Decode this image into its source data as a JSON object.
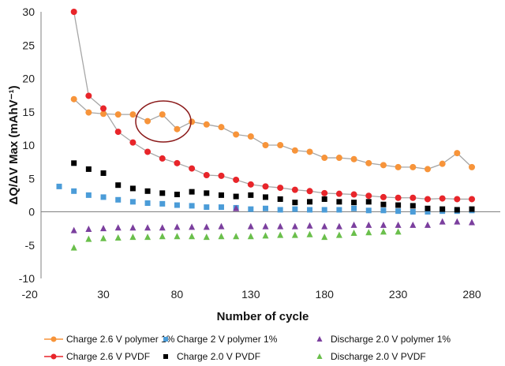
{
  "chart_data": {
    "type": "scatter",
    "xlabel": "Number of cycle",
    "ylabel": "ΔQ/ΔV Max (mAhV⁻¹)",
    "xlim": [
      -20,
      290
    ],
    "ylim": [
      -10,
      30
    ],
    "x_ticks": [
      -20,
      30,
      80,
      130,
      180,
      230,
      280
    ],
    "y_ticks": [
      -10,
      -5,
      0,
      5,
      10,
      15,
      20,
      25,
      30
    ],
    "grid": false,
    "legend_position": "bottom",
    "annotation": "ellipse highlighting cycles 60-80 of Charge 2.6 V polymer 1% series",
    "series": [
      {
        "name": "Charge 2.6 V polymer 1%",
        "marker": "circle",
        "color": "#F7943A",
        "line": true,
        "line_color": "#A6A6A6",
        "x": [
          10,
          20,
          30,
          40,
          50,
          60,
          70,
          80,
          90,
          100,
          110,
          120,
          130,
          140,
          150,
          160,
          170,
          180,
          190,
          200,
          210,
          220,
          230,
          240,
          250,
          260,
          270,
          280
        ],
        "y": [
          16.9,
          14.9,
          14.7,
          14.6,
          14.6,
          13.6,
          14.6,
          12.4,
          13.5,
          13.1,
          12.7,
          11.6,
          11.3,
          10.0,
          10.0,
          9.2,
          9.0,
          8.1,
          8.1,
          7.9,
          7.3,
          7.0,
          6.7,
          6.7,
          6.4,
          7.2,
          8.8,
          6.7
        ]
      },
      {
        "name": "Charge 2.6 V PVDF",
        "marker": "circle",
        "color": "#E8252A",
        "line": true,
        "line_color": "#A6A6A6",
        "x": [
          10,
          20,
          30,
          40,
          50,
          60,
          70,
          80,
          90,
          100,
          110,
          120,
          130,
          140,
          150,
          160,
          170,
          180,
          190,
          200,
          210,
          220,
          230,
          240,
          250,
          260,
          270,
          280
        ],
        "y": [
          30.0,
          17.4,
          15.5,
          12.0,
          10.4,
          9.0,
          8.0,
          7.3,
          6.5,
          5.5,
          5.4,
          4.8,
          4.1,
          3.8,
          3.6,
          3.3,
          3.1,
          2.8,
          2.7,
          2.6,
          2.4,
          2.2,
          2.1,
          2.1,
          1.9,
          2.0,
          1.9,
          1.9
        ]
      },
      {
        "name": "Charge 2 V polymer 1%",
        "marker": "square",
        "color": "#4B9CD8",
        "line": false,
        "x": [
          0,
          10,
          20,
          30,
          40,
          50,
          60,
          70,
          80,
          90,
          100,
          110,
          120,
          130,
          140,
          150,
          160,
          170,
          180,
          190,
          200,
          210,
          220,
          230,
          240,
          250,
          260,
          270,
          280
        ],
        "y": [
          3.8,
          3.1,
          2.5,
          2.2,
          1.8,
          1.5,
          1.3,
          1.2,
          1.0,
          0.9,
          0.7,
          0.7,
          0.6,
          0.4,
          0.5,
          0.3,
          0.4,
          0.3,
          0.3,
          0.3,
          0.5,
          0.2,
          0.2,
          0.1,
          0.0,
          0.0,
          0.1,
          0.1,
          0.2
        ]
      },
      {
        "name": "Charge 2.0 V PVDF",
        "marker": "square",
        "color": "#000000",
        "line": false,
        "x": [
          10,
          20,
          30,
          40,
          50,
          60,
          70,
          80,
          90,
          100,
          110,
          120,
          130,
          140,
          150,
          160,
          170,
          180,
          190,
          200,
          210,
          220,
          230,
          240,
          250,
          260,
          270,
          280
        ],
        "y": [
          7.3,
          6.4,
          5.8,
          4.0,
          3.5,
          3.1,
          2.8,
          2.6,
          3.0,
          2.8,
          2.5,
          2.3,
          2.5,
          2.2,
          1.9,
          1.4,
          1.5,
          1.9,
          1.5,
          1.4,
          1.5,
          1.1,
          1.0,
          0.9,
          0.5,
          0.4,
          0.3,
          0.4
        ]
      },
      {
        "name": "Discharge 2.0 V polymer 1%",
        "marker": "triangle",
        "color": "#7B3F9E",
        "line": false,
        "x": [
          10,
          20,
          30,
          40,
          50,
          60,
          70,
          80,
          90,
          100,
          110,
          120,
          130,
          140,
          150,
          160,
          170,
          180,
          190,
          200,
          210,
          220,
          230,
          240,
          250,
          260,
          270,
          280
        ],
        "y": [
          -2.8,
          -2.6,
          -2.5,
          -2.4,
          -2.4,
          -2.4,
          -2.4,
          -2.3,
          -2.3,
          -2.3,
          -2.2,
          0.5,
          -2.2,
          -2.2,
          -2.2,
          -2.2,
          -2.1,
          -2.2,
          -2.2,
          -2.0,
          -2.0,
          -2.0,
          -2.0,
          -2.0,
          -2.0,
          -1.5,
          -1.5,
          -1.6
        ]
      },
      {
        "name": "Discharge 2.0 V PVDF",
        "marker": "triangle",
        "color": "#6ABF4B",
        "line": false,
        "x": [
          10,
          20,
          30,
          40,
          50,
          60,
          70,
          80,
          90,
          100,
          110,
          120,
          130,
          140,
          150,
          160,
          170,
          180,
          190,
          200,
          210,
          220,
          230
        ],
        "y": [
          -5.4,
          -4.1,
          -4.0,
          -3.9,
          -3.8,
          -3.8,
          -3.7,
          -3.7,
          -3.7,
          -3.8,
          -3.7,
          -3.7,
          -3.7,
          -3.6,
          -3.5,
          -3.5,
          -3.4,
          -3.8,
          -3.5,
          -3.2,
          -3.1,
          -3.0,
          -3.0
        ]
      }
    ]
  }
}
